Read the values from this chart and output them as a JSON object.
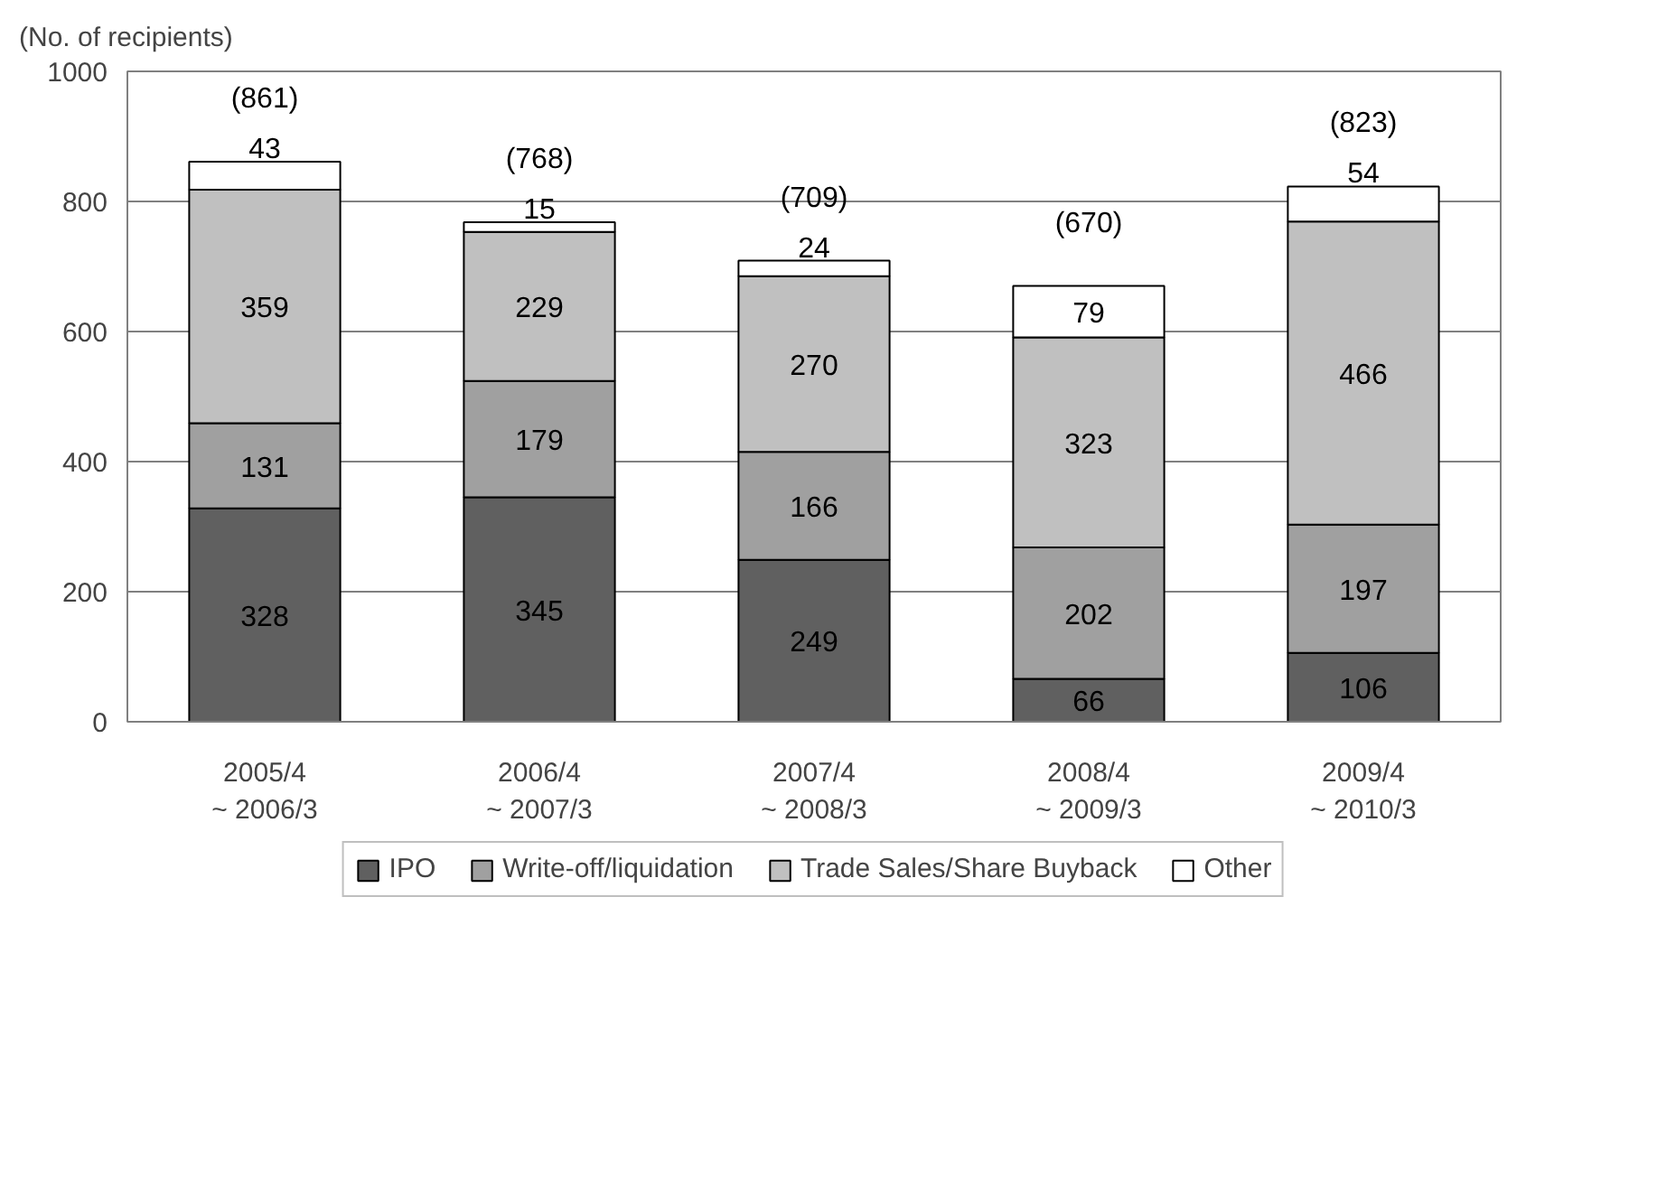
{
  "chart_data": {
    "type": "bar",
    "stacked": true,
    "ylabel": "(No. of recipients)",
    "categories": [
      "2005/4\n~ 2006/3",
      "2006/4\n~ 2007/3",
      "2007/4\n~ 2008/3",
      "2008/4\n~ 2009/3",
      "2009/4\n~ 2010/3"
    ],
    "series": [
      {
        "name": "IPO",
        "color": "#606060",
        "values": [
          328,
          345,
          249,
          66,
          106
        ]
      },
      {
        "name": "Write-off/liquidation",
        "color": "#a0a0a0",
        "values": [
          131,
          179,
          166,
          202,
          197
        ]
      },
      {
        "name": "Trade Sales/Share Buyback",
        "color": "#c0c0c0",
        "values": [
          359,
          229,
          270,
          323,
          466
        ]
      },
      {
        "name": "Other",
        "color": "#ffffff",
        "values": [
          43,
          15,
          24,
          79,
          54
        ]
      }
    ],
    "totals": [
      "(861)",
      "(768)",
      "(709)",
      "(670)",
      "(823)"
    ],
    "ylim": [
      0,
      1000
    ],
    "yticks": [
      0,
      200,
      400,
      600,
      800,
      1000
    ],
    "grid": "y",
    "legend": "bottom",
    "data_labels": true
  }
}
